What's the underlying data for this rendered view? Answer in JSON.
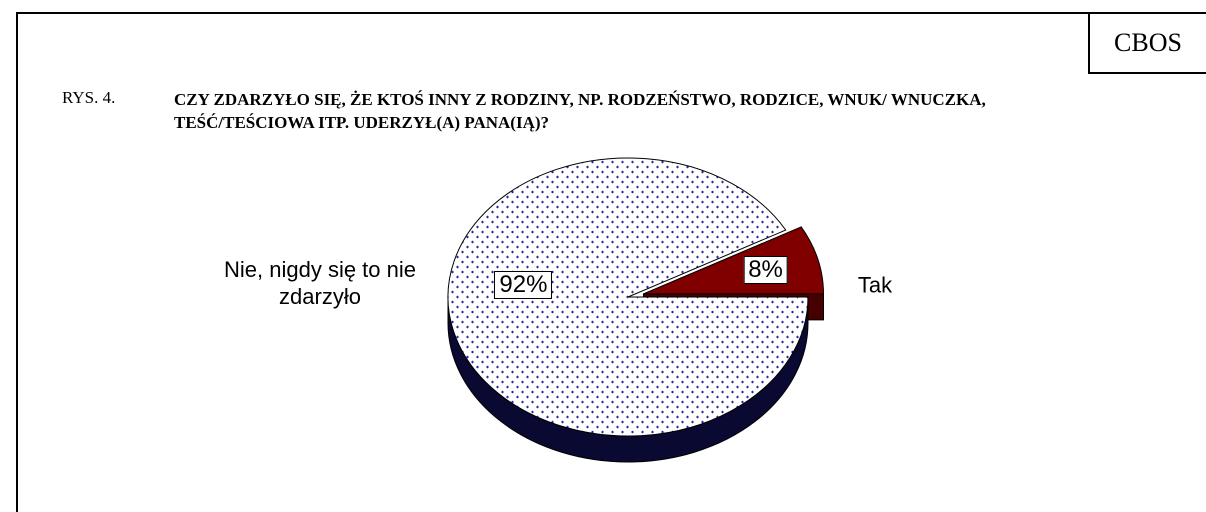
{
  "header": {
    "brand": "CBOS"
  },
  "chart_data": {
    "type": "pie",
    "figure_label": "RYS. 4.",
    "title": "CZY ZDARZYŁO SIĘ, ŻE KTOŚ INNY Z RODZINY, NP. RODZEŃSTWO, RODZICE, WNUK/ WNUCZKA, TEŚĆ/TEŚCIOWA ITP. UDERZYŁ(A) PANA(IĄ)?",
    "categories": [
      "Nie, nigdy się to nie zdarzyło",
      "Tak"
    ],
    "values": [
      92,
      8
    ],
    "value_labels": [
      "92%",
      "8%"
    ],
    "colors": [
      "#1a1a8c",
      "#800000"
    ],
    "explode": [
      false,
      true
    ]
  }
}
